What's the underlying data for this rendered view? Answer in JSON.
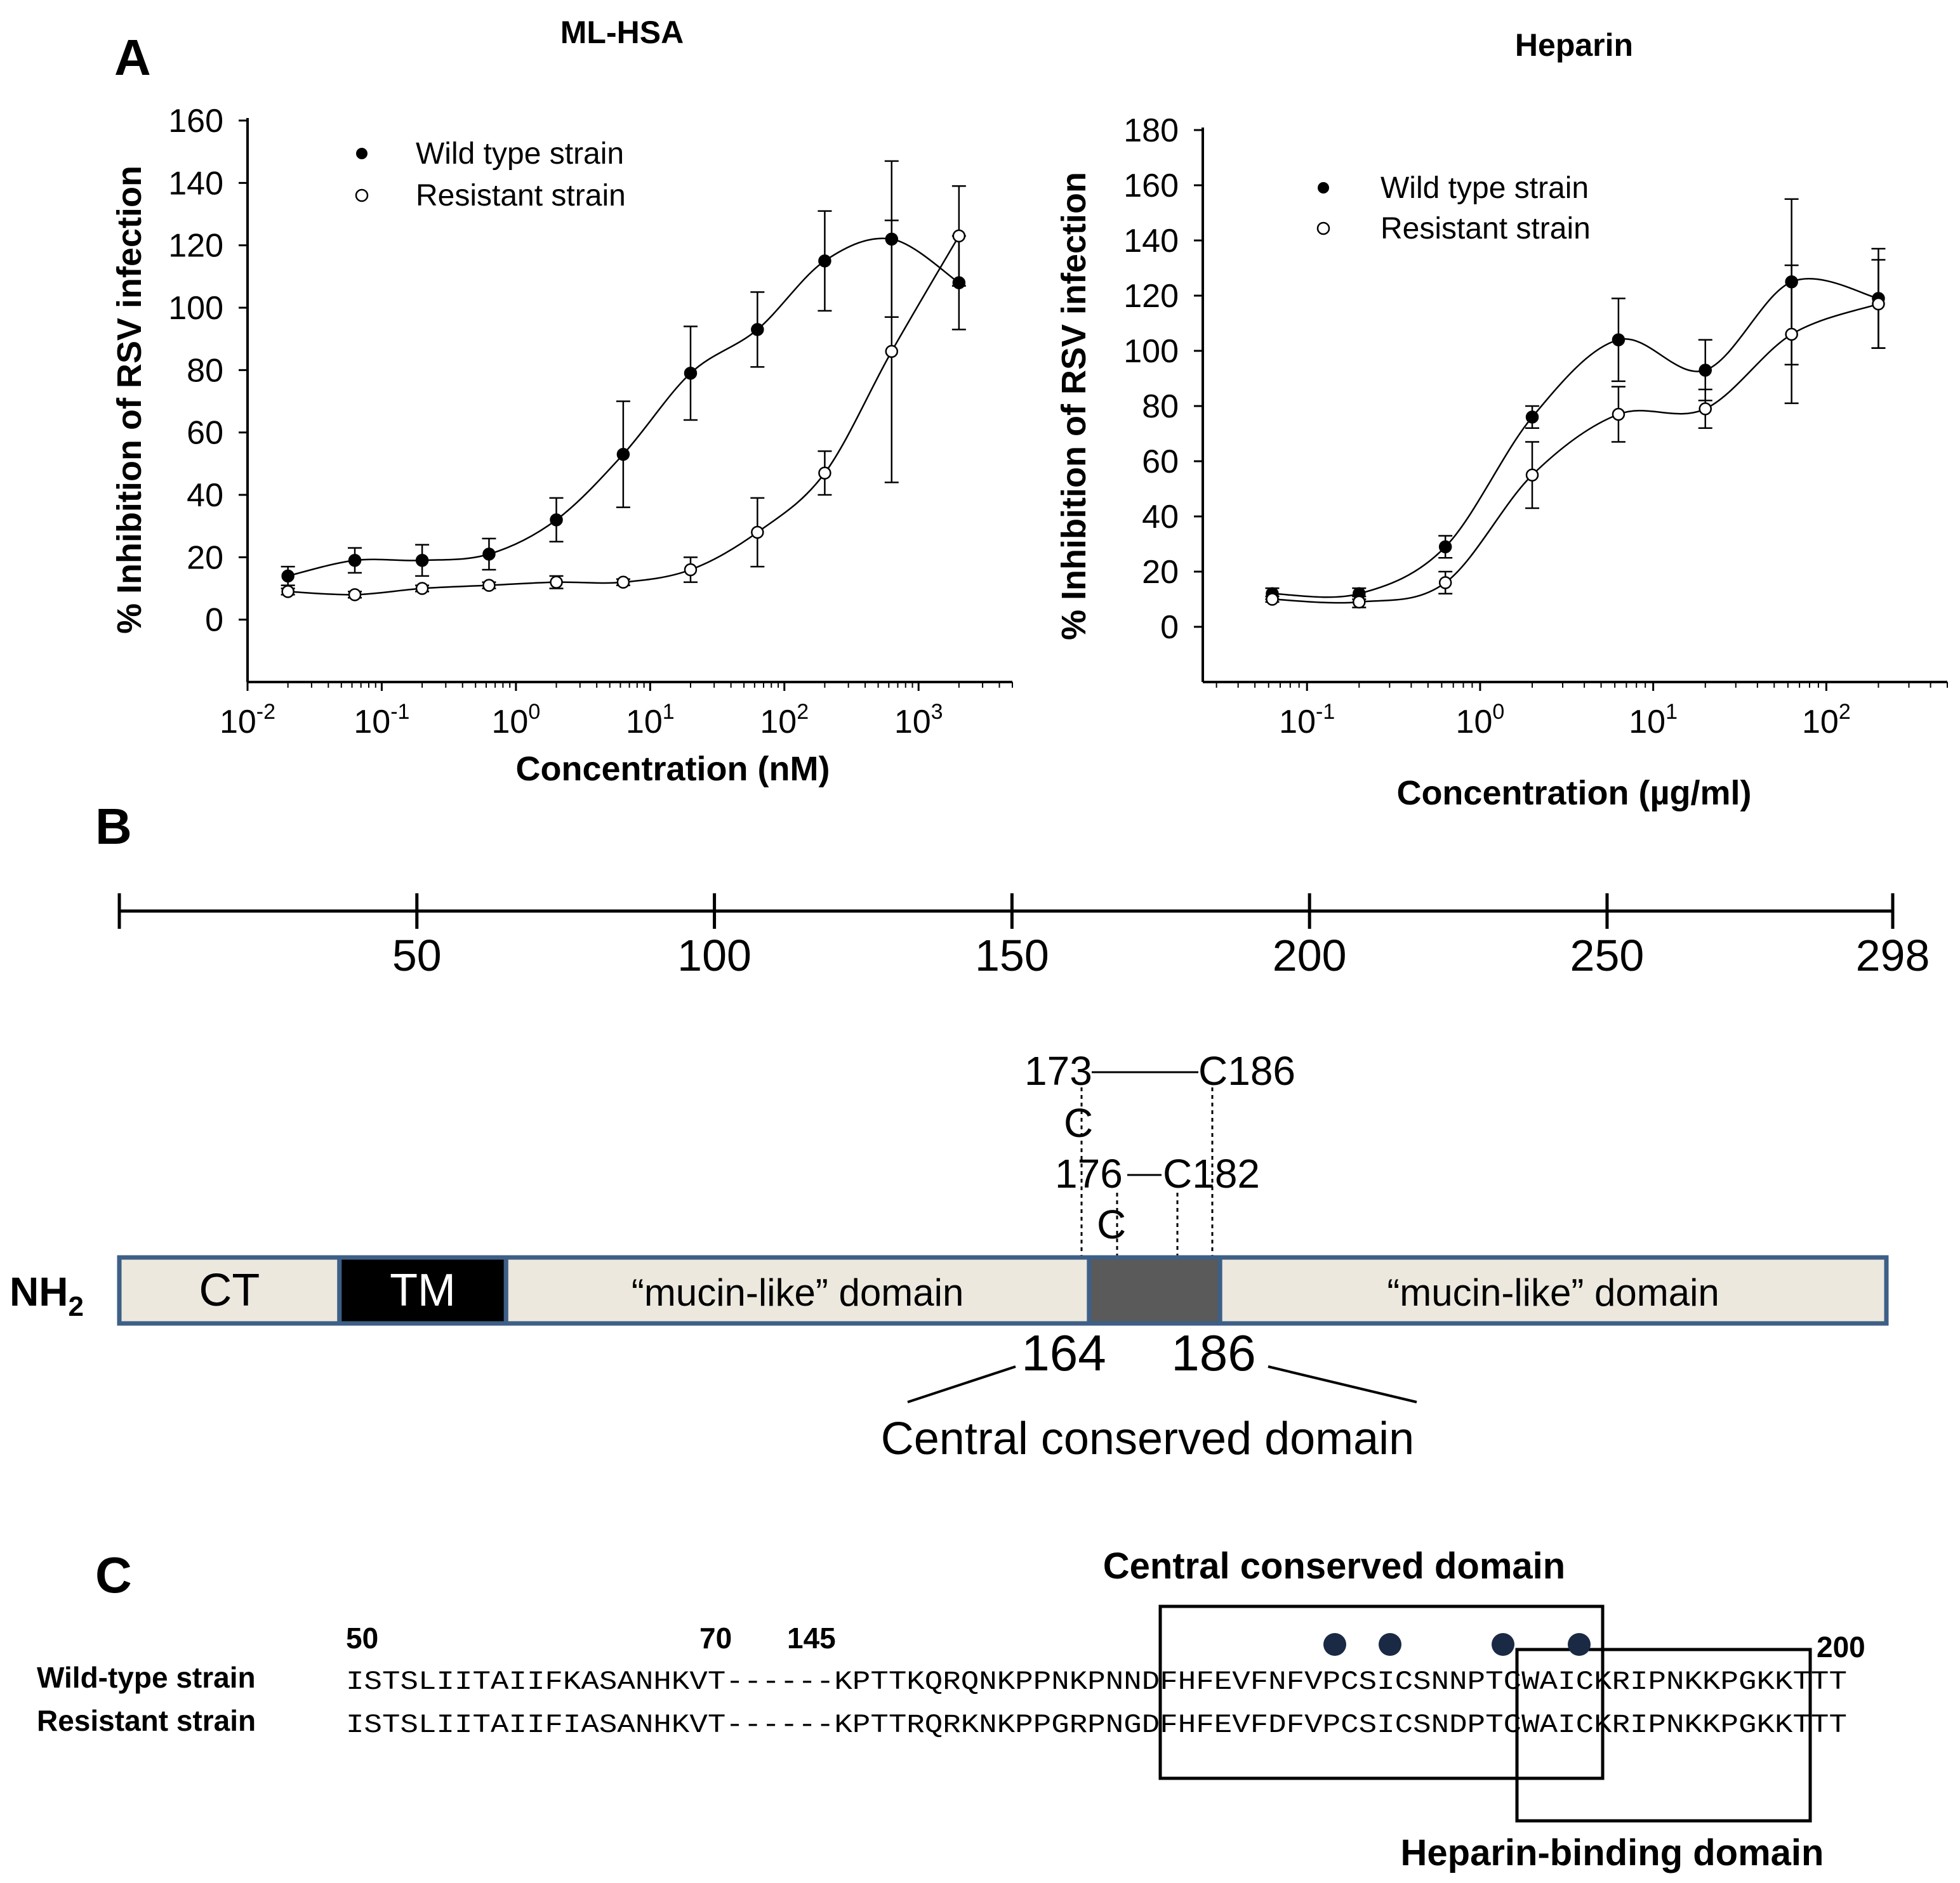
{
  "panel_labels": {
    "a": "A",
    "b": "B",
    "c": "C"
  },
  "chart_data": [
    {
      "type": "scatter",
      "title": "ML-HSA",
      "ylabel": "% Inhibition of RSV infection",
      "xlabel": "Concentration (nM)",
      "x_scale": "log",
      "xlim": [
        0.01,
        5000
      ],
      "ylim": [
        -20,
        160
      ],
      "yticks": [
        "0",
        "20",
        "40",
        "60",
        "80",
        "100",
        "120",
        "140",
        "160"
      ],
      "xticks": [
        {
          "base": "10",
          "exp": "-2"
        },
        {
          "base": "10",
          "exp": "-1"
        },
        {
          "base": "10",
          "exp": "0"
        },
        {
          "base": "10",
          "exp": "1"
        },
        {
          "base": "10",
          "exp": "2"
        },
        {
          "base": "10",
          "exp": "3"
        }
      ],
      "legend": [
        "Wild type strain",
        "Resistant strain"
      ],
      "series": [
        {
          "name": "Wild type strain",
          "marker": "filled",
          "x": [
            0.02,
            0.063,
            0.2,
            0.63,
            2,
            6.3,
            20,
            63,
            200,
            630,
            2000
          ],
          "y": [
            14,
            19,
            19,
            21,
            32,
            53,
            79,
            93,
            115,
            122,
            108
          ],
          "err": [
            3,
            4,
            5,
            5,
            7,
            17,
            15,
            12,
            16,
            25,
            15
          ]
        },
        {
          "name": "Resistant strain",
          "marker": "open",
          "x": [
            0.02,
            0.063,
            0.2,
            0.63,
            2,
            6.3,
            20,
            63,
            200,
            630,
            2000
          ],
          "y": [
            9,
            8,
            10,
            11,
            12,
            12,
            16,
            28,
            47,
            86,
            123
          ],
          "err": [
            1,
            1,
            1,
            1,
            2,
            1,
            4,
            11,
            7,
            42,
            16
          ]
        }
      ]
    },
    {
      "type": "scatter",
      "title": "Heparin",
      "ylabel": "% Inhibition of RSV infection",
      "xlabel": "Concentration (µg/ml)",
      "x_scale": "log",
      "xlim": [
        0.025,
        500
      ],
      "ylim": [
        -20,
        180
      ],
      "yticks": [
        "0",
        "20",
        "40",
        "60",
        "80",
        "100",
        "120",
        "140",
        "160",
        "180"
      ],
      "xticks": [
        {
          "base": "10",
          "exp": "-1"
        },
        {
          "base": "10",
          "exp": "0"
        },
        {
          "base": "10",
          "exp": "1"
        },
        {
          "base": "10",
          "exp": "2"
        }
      ],
      "legend": [
        "Wild type strain",
        "Resistant strain"
      ],
      "series": [
        {
          "name": "Wild type strain",
          "marker": "filled",
          "x": [
            0.063,
            0.2,
            0.63,
            2,
            6.3,
            20,
            63,
            200
          ],
          "y": [
            12,
            12,
            29,
            76,
            104,
            93,
            125,
            119
          ],
          "err": [
            2,
            2,
            4,
            4,
            15,
            11,
            30,
            18
          ]
        },
        {
          "name": "Resistant strain",
          "marker": "open",
          "x": [
            0.063,
            0.2,
            0.63,
            2,
            6.3,
            20,
            63,
            200
          ],
          "y": [
            10,
            9,
            16,
            55,
            77,
            79,
            106,
            117
          ],
          "err": [
            1,
            2,
            4,
            12,
            10,
            7,
            25,
            16
          ]
        }
      ]
    }
  ],
  "scale_bar": {
    "ticks": [
      "50",
      "100",
      "150",
      "200",
      "250",
      "298"
    ]
  },
  "domain_map": {
    "nterm_label": "NH",
    "nterm_sub": "2",
    "segments": [
      {
        "label": "CT",
        "start": 1,
        "end": 38,
        "fill": "#ece8de",
        "text_color": "#000000"
      },
      {
        "label": "TM",
        "start": 38,
        "end": 66,
        "fill": "#000000",
        "text_color": "#ffffff"
      },
      {
        "label": "“mucin-like” domain",
        "start": 66,
        "end": 164,
        "fill": "#ece8de",
        "text_color": "#000000"
      },
      {
        "label": "",
        "start": 164,
        "end": 186,
        "fill": "#5a5a5a",
        "text_color": "#ffffff"
      },
      {
        "label": "“mucin-like” domain",
        "start": 186,
        "end": 298,
        "fill": "#ece8de",
        "text_color": "#000000"
      }
    ],
    "disulfide": {
      "label_173": "173",
      "label_c186": "C186",
      "label_c1": "C",
      "label_176": "176",
      "label_c182": "C182",
      "label_c2": "C"
    },
    "ccd_start": "164",
    "ccd_end": "186",
    "ccd_label": "Central conserved domain",
    "border_color": "#3e5f86"
  },
  "alignment": {
    "heading": "Central conserved domain",
    "footer": "Heparin-binding domain",
    "pos_labels": {
      "p50": "50",
      "p70": "70",
      "p145": "145",
      "p200": "200"
    },
    "rows": [
      {
        "name": "Wild-type strain",
        "seq": "ISTSLIITAIIFKASANHKVT------KPTTKQRQNKPPNKPNNDFHFEVFNFVPCSICSNNPTCWAICKRIPNKKPGKKTTT"
      },
      {
        "name": "Resistant strain",
        "seq": "ISTSLIITAIIFIASANHKVT------KPTTRQRKNKPPGRPNGDFHFEVFDFVPCSICSNDPTCWAICKRIPNKKPGKKTTT"
      }
    ],
    "dot_color": "#1a2a44"
  }
}
